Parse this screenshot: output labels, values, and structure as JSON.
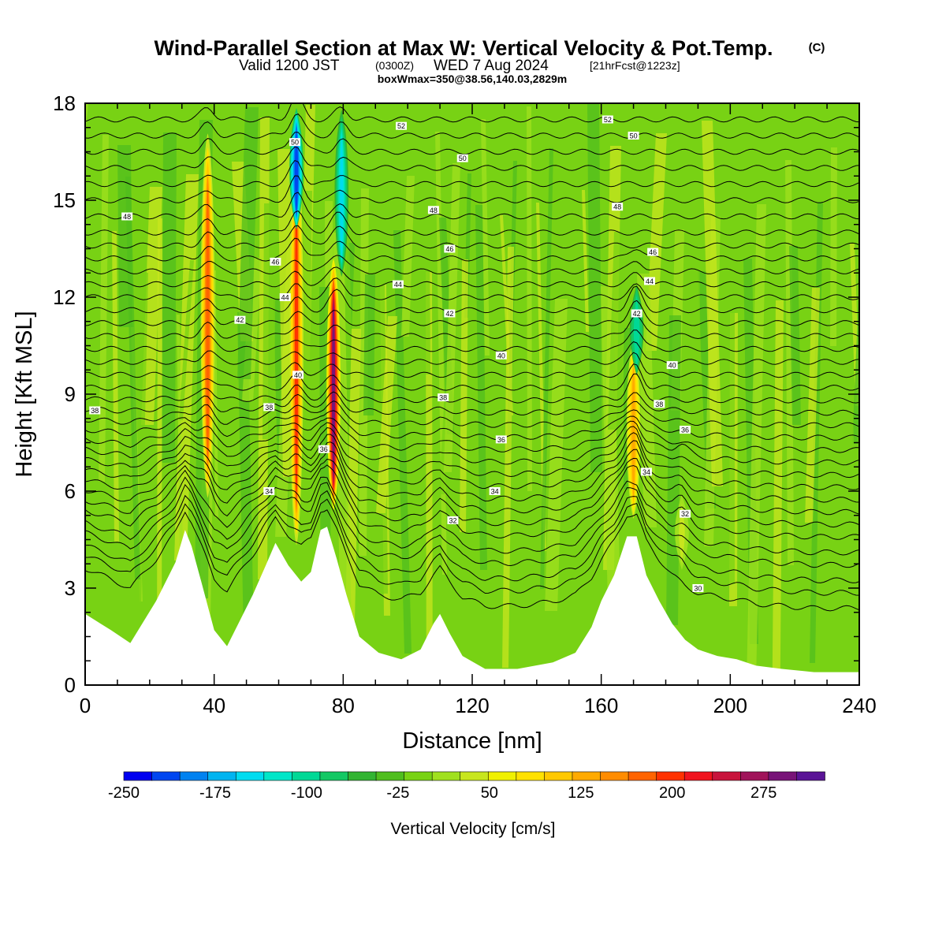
{
  "title": {
    "main": "Wind-Parallel Section at Max W: Vertical Velocity & Pot.Temp.",
    "copyright": "(C)",
    "line2_a": "Valid 1200 JST",
    "line2_b": "(0300Z)",
    "line2_c": "WED 7 Aug 2024",
    "line2_d": "[21hrFcst@1223z]",
    "line3": "boxWmax=350@38.56,140.03,2829m"
  },
  "chart_data": {
    "type": "heatmap",
    "title": "Wind-Parallel Section at Max W: Vertical Velocity & Pot.Temp.",
    "xlabel": "Distance [nm]",
    "ylabel": "Height [Kft MSL]",
    "xlim": [
      0,
      240
    ],
    "ylim": [
      0,
      18
    ],
    "xticks": [
      "0",
      "40",
      "80",
      "120",
      "160",
      "200",
      "240"
    ],
    "yticks": [
      "0",
      "3",
      "6",
      "9",
      "12",
      "15",
      "18"
    ],
    "colorbar": {
      "label": "Vertical Velocity [cm/s]",
      "tick_labels": [
        "-250",
        "-175",
        "-100",
        "-25",
        "50",
        "125",
        "200",
        "275"
      ],
      "bin_edges": [
        -250,
        325
      ],
      "bin_width": 25,
      "colors": [
        "#0000f0",
        "#0046f0",
        "#0082f0",
        "#00b4f0",
        "#00dcf0",
        "#00e6c8",
        "#00d896",
        "#14c864",
        "#32b432",
        "#50be1e",
        "#78d214",
        "#a0e01e",
        "#c8e61e",
        "#f0f000",
        "#ffe100",
        "#ffc800",
        "#ffaa00",
        "#ff8c00",
        "#ff6400",
        "#ff3200",
        "#f0141e",
        "#c8143c",
        "#a0145a",
        "#781478",
        "#5a1496"
      ]
    },
    "background_color": "#78d214",
    "terrain_kft": [
      [
        0,
        2.2
      ],
      [
        8,
        1.7
      ],
      [
        14,
        1.3
      ],
      [
        22,
        2.6
      ],
      [
        28,
        3.8
      ],
      [
        31,
        4.8
      ],
      [
        33,
        4.3
      ],
      [
        36,
        3.2
      ],
      [
        40,
        1.7
      ],
      [
        44,
        1.2
      ],
      [
        48,
        2.0
      ],
      [
        52,
        2.8
      ],
      [
        56,
        3.7
      ],
      [
        59,
        4.4
      ],
      [
        63,
        3.7
      ],
      [
        67,
        3.2
      ],
      [
        70,
        3.5
      ],
      [
        73,
        4.8
      ],
      [
        75,
        4.9
      ],
      [
        78,
        3.9
      ],
      [
        81,
        2.8
      ],
      [
        85,
        1.5
      ],
      [
        91,
        1.0
      ],
      [
        98,
        0.8
      ],
      [
        104,
        1.1
      ],
      [
        108,
        1.9
      ],
      [
        110,
        2.2
      ],
      [
        113,
        1.6
      ],
      [
        117,
        0.9
      ],
      [
        124,
        0.5
      ],
      [
        134,
        0.5
      ],
      [
        145,
        0.7
      ],
      [
        152,
        1.0
      ],
      [
        157,
        1.8
      ],
      [
        160,
        2.6
      ],
      [
        164,
        3.4
      ],
      [
        168,
        4.6
      ],
      [
        171,
        4.6
      ],
      [
        174,
        3.4
      ],
      [
        178,
        2.6
      ],
      [
        182,
        1.9
      ],
      [
        186,
        1.4
      ],
      [
        190,
        1.1
      ],
      [
        196,
        0.9
      ],
      [
        202,
        0.8
      ],
      [
        208,
        0.6
      ],
      [
        216,
        0.5
      ],
      [
        226,
        0.4
      ],
      [
        240,
        0.4
      ]
    ],
    "updrafts": [
      {
        "x": 38,
        "z_bottom": 5.5,
        "z_top": 17.5,
        "w_max": 215
      },
      {
        "x": 65.5,
        "z_bottom": 4.0,
        "z_top": 17.5,
        "w_max": 225
      },
      {
        "x": 77,
        "z_bottom": 5.2,
        "z_top": 13.5,
        "w_max": 325
      },
      {
        "x": 170,
        "z_bottom": 5.0,
        "z_top": 11.0,
        "w_max": 150
      },
      {
        "x": 185,
        "z_bottom": 3.5,
        "z_top": 6.0,
        "w_max": 60
      }
    ],
    "downdrafts": [
      {
        "x": 65.5,
        "z_bottom": 14.0,
        "z_top": 18.0,
        "w_min": -220
      },
      {
        "x": 79.5,
        "z_bottom": 12.5,
        "z_top": 18.0,
        "w_min": -150
      },
      {
        "x": 171,
        "z_bottom": 9.5,
        "z_top": 12.5,
        "w_min": -100
      }
    ],
    "theta_contour_labels": [
      {
        "text": "30",
        "x": 190,
        "z": 3.0
      },
      {
        "text": "32",
        "x": 114,
        "z": 5.1
      },
      {
        "text": "32",
        "x": 186,
        "z": 5.3
      },
      {
        "text": "34",
        "x": 57,
        "z": 6.0
      },
      {
        "text": "34",
        "x": 127,
        "z": 6.0
      },
      {
        "text": "34",
        "x": 174,
        "z": 6.6
      },
      {
        "text": "36",
        "x": 74,
        "z": 7.3
      },
      {
        "text": "36",
        "x": 129,
        "z": 7.6
      },
      {
        "text": "36",
        "x": 186,
        "z": 7.9
      },
      {
        "text": "38",
        "x": 3,
        "z": 8.5
      },
      {
        "text": "38",
        "x": 57,
        "z": 8.6
      },
      {
        "text": "38",
        "x": 111,
        "z": 8.9
      },
      {
        "text": "38",
        "x": 178,
        "z": 8.7
      },
      {
        "text": "40",
        "x": 66,
        "z": 9.6
      },
      {
        "text": "40",
        "x": 129,
        "z": 10.2
      },
      {
        "text": "40",
        "x": 182,
        "z": 9.9
      },
      {
        "text": "42",
        "x": 48,
        "z": 11.3
      },
      {
        "text": "42",
        "x": 113,
        "z": 11.5
      },
      {
        "text": "42",
        "x": 171,
        "z": 11.5
      },
      {
        "text": "44",
        "x": 62,
        "z": 12.0
      },
      {
        "text": "44",
        "x": 97,
        "z": 12.4
      },
      {
        "text": "44",
        "x": 175,
        "z": 12.5
      },
      {
        "text": "46",
        "x": 59,
        "z": 13.1
      },
      {
        "text": "46",
        "x": 113,
        "z": 13.5
      },
      {
        "text": "46",
        "x": 176,
        "z": 13.4
      },
      {
        "text": "48",
        "x": 13,
        "z": 14.5
      },
      {
        "text": "48",
        "x": 108,
        "z": 14.7
      },
      {
        "text": "48",
        "x": 165,
        "z": 14.8
      },
      {
        "text": "50",
        "x": 65,
        "z": 16.8
      },
      {
        "text": "50",
        "x": 117,
        "z": 16.3
      },
      {
        "text": "50",
        "x": 170,
        "z": 17.0
      },
      {
        "text": "52",
        "x": 98,
        "z": 17.3
      },
      {
        "text": "52",
        "x": 162,
        "z": 17.5
      }
    ],
    "theta_contour_heights_kft": [
      2.1,
      2.6,
      3.0,
      3.5,
      3.9,
      4.4,
      4.8,
      5.2,
      5.6,
      6.0,
      6.4,
      6.8,
      7.2,
      7.6,
      8.0,
      8.4,
      8.8,
      9.2,
      9.6,
      10.0,
      10.4,
      10.8,
      11.2,
      11.6,
      12.0,
      12.4,
      12.8,
      13.2,
      13.6,
      14.0,
      14.5,
      15.0,
      15.5,
      16.0,
      16.5,
      17.0,
      17.5
    ]
  }
}
